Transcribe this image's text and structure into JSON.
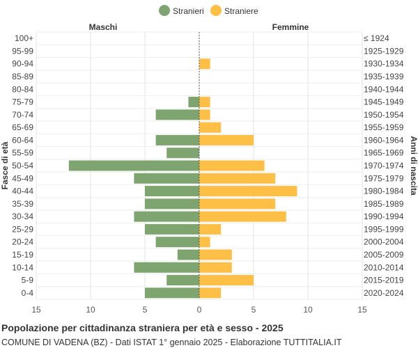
{
  "chart_data": {
    "type": "bar",
    "orientation": "horizontal-population-pyramid",
    "legend": [
      {
        "name": "Stranieri",
        "color": "#7ea46f"
      },
      {
        "name": "Straniere",
        "color": "#fdbf46"
      }
    ],
    "left_header": "Maschi",
    "right_header": "Femmine",
    "ylabel_left": "Fasce di età",
    "ylabel_right": "Anni di nascita",
    "xlim": [
      -15,
      15
    ],
    "x_ticks": [
      "15",
      "10",
      "5",
      "0",
      "5",
      "10",
      "15"
    ],
    "age_groups": [
      "100+",
      "95-99",
      "90-94",
      "85-89",
      "80-84",
      "75-79",
      "70-74",
      "65-69",
      "60-64",
      "55-59",
      "50-54",
      "45-49",
      "40-44",
      "35-39",
      "30-34",
      "25-29",
      "20-24",
      "15-19",
      "10-14",
      "5-9",
      "0-4"
    ],
    "birth_years": [
      "≤ 1924",
      "1925-1929",
      "1930-1934",
      "1935-1939",
      "1940-1944",
      "1945-1949",
      "1950-1954",
      "1955-1959",
      "1960-1964",
      "1965-1969",
      "1970-1974",
      "1975-1979",
      "1980-1984",
      "1985-1989",
      "1990-1994",
      "1995-1999",
      "2000-2004",
      "2005-2009",
      "2010-2014",
      "2015-2019",
      "2020-2024"
    ],
    "series": [
      {
        "name": "Stranieri",
        "values": [
          0,
          0,
          0,
          0,
          0,
          1,
          4,
          0,
          4,
          3,
          12,
          6,
          5,
          5,
          6,
          5,
          4,
          2,
          6,
          3,
          5
        ]
      },
      {
        "name": "Straniere",
        "values": [
          0,
          0,
          1,
          0,
          0,
          1,
          1,
          2,
          5,
          0,
          6,
          7,
          9,
          7,
          8,
          2,
          1,
          3,
          3,
          5,
          2
        ]
      }
    ],
    "grid": true
  },
  "footer": {
    "title": "Popolazione per cittadinanza straniera per età e sesso - 2025",
    "subtitle": "COMUNE DI VADENA (BZ) - Dati ISTAT 1° gennaio 2025 - Elaborazione TUTTITALIA.IT"
  }
}
